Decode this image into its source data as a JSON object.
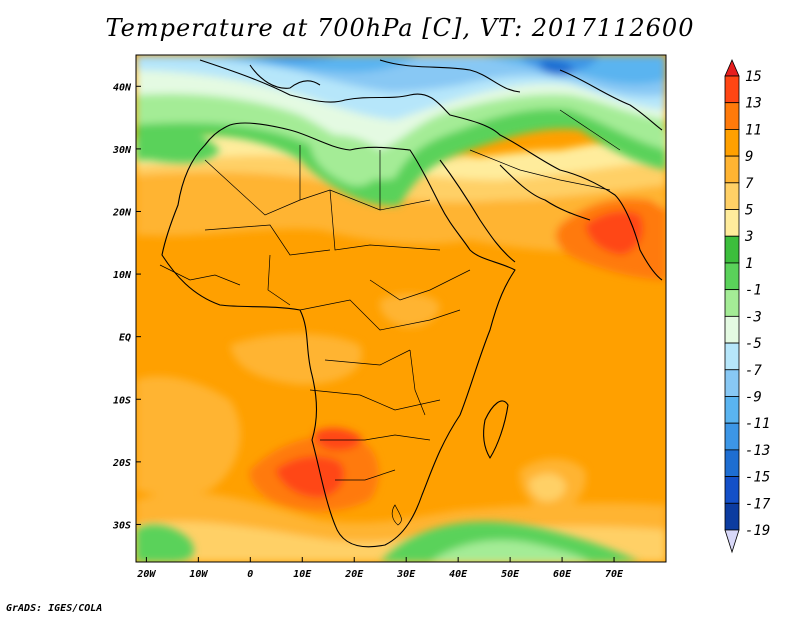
{
  "title": "Temperature at 700hPa [C], VT: 2017112600",
  "credit": "GrADS: IGES/COLA",
  "map": {
    "type": "filled-contour",
    "lon_range": [
      -22,
      80
    ],
    "lat_range": [
      -36,
      45
    ],
    "lon_ticks": [
      {
        "value": -20,
        "label": "20W"
      },
      {
        "value": -10,
        "label": "10W"
      },
      {
        "value": 0,
        "label": "0"
      },
      {
        "value": 10,
        "label": "10E"
      },
      {
        "value": 20,
        "label": "20E"
      },
      {
        "value": 30,
        "label": "30E"
      },
      {
        "value": 40,
        "label": "40E"
      },
      {
        "value": 50,
        "label": "50E"
      },
      {
        "value": 60,
        "label": "60E"
      },
      {
        "value": 70,
        "label": "70E"
      }
    ],
    "lat_ticks": [
      {
        "value": 40,
        "label": "40N"
      },
      {
        "value": 30,
        "label": "30N"
      },
      {
        "value": 20,
        "label": "20N"
      },
      {
        "value": 10,
        "label": "10N"
      },
      {
        "value": 0,
        "label": "EQ"
      },
      {
        "value": -10,
        "label": "10S"
      },
      {
        "value": -20,
        "label": "20S"
      },
      {
        "value": -30,
        "label": "30S"
      }
    ]
  },
  "colorbar": {
    "labels": [
      "15",
      "13",
      "11",
      "9",
      "7",
      "5",
      "3",
      "1",
      "-1",
      "-3",
      "-5",
      "-7",
      "-9",
      "-11",
      "-13",
      "-15",
      "-17",
      "-19"
    ],
    "colors": [
      "#e61e1e",
      "#ff4614",
      "#ff7a0a",
      "#ffa000",
      "#ffb432",
      "#ffd066",
      "#ffec9c",
      "#3cbe3c",
      "#5ad25a",
      "#a4ec96",
      "#e4fae2",
      "#b6e6fa",
      "#88c8f4",
      "#5ab4f0",
      "#3c96e6",
      "#1e6ed2",
      "#1450c8",
      "#0c3ca0",
      "#0a1e78"
    ]
  }
}
